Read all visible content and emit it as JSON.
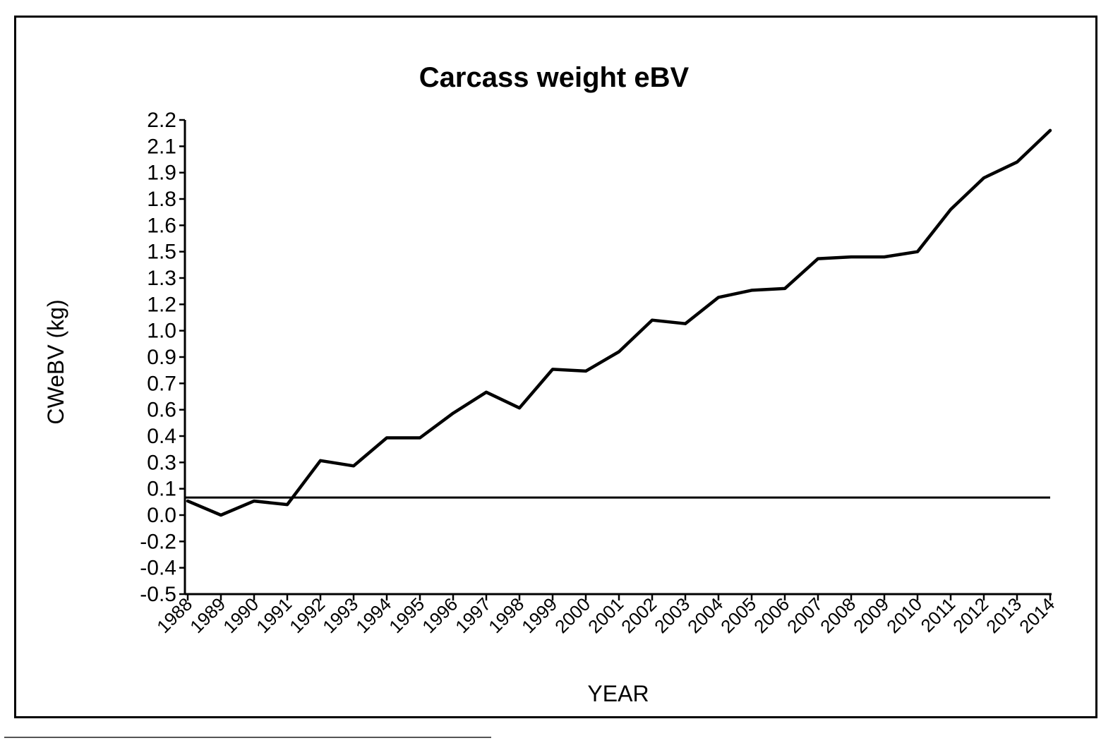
{
  "chart_data": {
    "type": "line",
    "title": "Carcass weight eBV",
    "xlabel": "YEAR",
    "ylabel": "CWeBV (kg)",
    "yticks": [
      "2.2",
      "2.1",
      "1.9",
      "1.8",
      "1.6",
      "1.5",
      "1.3",
      "1.2",
      "1.0",
      "0.9",
      "0.7",
      "0.6",
      "0.4",
      "0.3",
      "0.1",
      "0.0",
      "-0.2",
      "-0.4",
      "-0.5"
    ],
    "ylim": [
      -0.5,
      2.2
    ],
    "categories": [
      "1988",
      "1989",
      "1990",
      "1991",
      "1992",
      "1993",
      "1994",
      "1995",
      "1996",
      "1997",
      "1998",
      "1999",
      "2000",
      "2001",
      "2002",
      "2003",
      "2004",
      "2005",
      "2006",
      "2007",
      "2008",
      "2009",
      "2010",
      "2011",
      "2012",
      "2013",
      "2014"
    ],
    "series": [
      {
        "values": [
          0.03,
          -0.05,
          0.03,
          0.01,
          0.26,
          0.23,
          0.39,
          0.39,
          0.53,
          0.65,
          0.56,
          0.78,
          0.77,
          0.88,
          1.06,
          1.04,
          1.19,
          1.23,
          1.24,
          1.41,
          1.42,
          1.42,
          1.45,
          1.69,
          1.87,
          1.96,
          2.14
        ]
      }
    ],
    "reference_line": 0.05,
    "grid": false,
    "legend": "none"
  }
}
